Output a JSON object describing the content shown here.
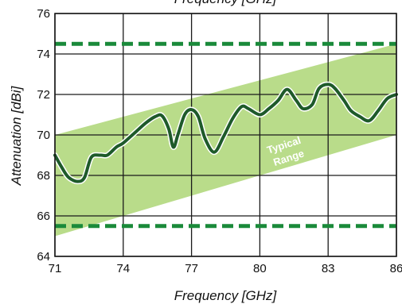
{
  "chart_data": {
    "type": "line",
    "title": "",
    "top_caption": "Frequency [GHz]",
    "xlabel": "Frequency [GHz]",
    "ylabel": "Attenuation [dBi]",
    "xlim": [
      71,
      86
    ],
    "ylim": [
      64,
      76
    ],
    "x_ticks": [
      71,
      74,
      77,
      80,
      83,
      86
    ],
    "x_tick_labels": [
      "71",
      "74",
      "77",
      "80",
      "83",
      "86"
    ],
    "y_ticks": [
      64,
      66,
      68,
      70,
      72,
      74,
      76
    ],
    "y_tick_labels": [
      "64",
      "66",
      "68",
      "70",
      "72",
      "74",
      "76"
    ],
    "grid": true,
    "typical_range": {
      "label_line1": "Typical",
      "label_line2": "Range",
      "lower": [
        [
          71,
          65.0
        ],
        [
          86,
          70.0
        ]
      ],
      "upper": [
        [
          71,
          70.0
        ],
        [
          86,
          74.5
        ]
      ],
      "color": "#b9dc8a"
    },
    "limit_lines": {
      "values": [
        74.5,
        65.5
      ],
      "style": "dashed",
      "color": "#1a8a3a"
    },
    "series": [
      {
        "color": "#1e5a2a",
        "x": [
          71.0,
          71.3,
          71.6,
          72.0,
          72.3,
          72.6,
          73.0,
          73.3,
          73.7,
          74.0,
          74.5,
          75.0,
          75.4,
          75.7,
          76.0,
          76.2,
          76.4,
          76.7,
          77.0,
          77.3,
          77.6,
          78.0,
          78.4,
          78.8,
          79.2,
          79.5,
          80.0,
          80.4,
          80.8,
          81.2,
          81.6,
          81.9,
          82.3,
          82.6,
          83.0,
          83.3,
          83.7,
          84.0,
          84.4,
          84.8,
          85.2,
          85.6,
          86.0
        ],
        "y": [
          69.0,
          68.4,
          67.9,
          67.7,
          67.9,
          68.9,
          69.0,
          69.0,
          69.4,
          69.6,
          70.1,
          70.6,
          70.9,
          70.95,
          70.3,
          69.4,
          70.0,
          71.0,
          71.25,
          70.9,
          69.8,
          69.15,
          69.9,
          70.8,
          71.4,
          71.3,
          71.0,
          71.3,
          71.7,
          72.25,
          71.7,
          71.3,
          71.5,
          72.3,
          72.5,
          72.3,
          71.7,
          71.2,
          70.9,
          70.7,
          71.2,
          71.8,
          72.0
        ]
      }
    ]
  }
}
